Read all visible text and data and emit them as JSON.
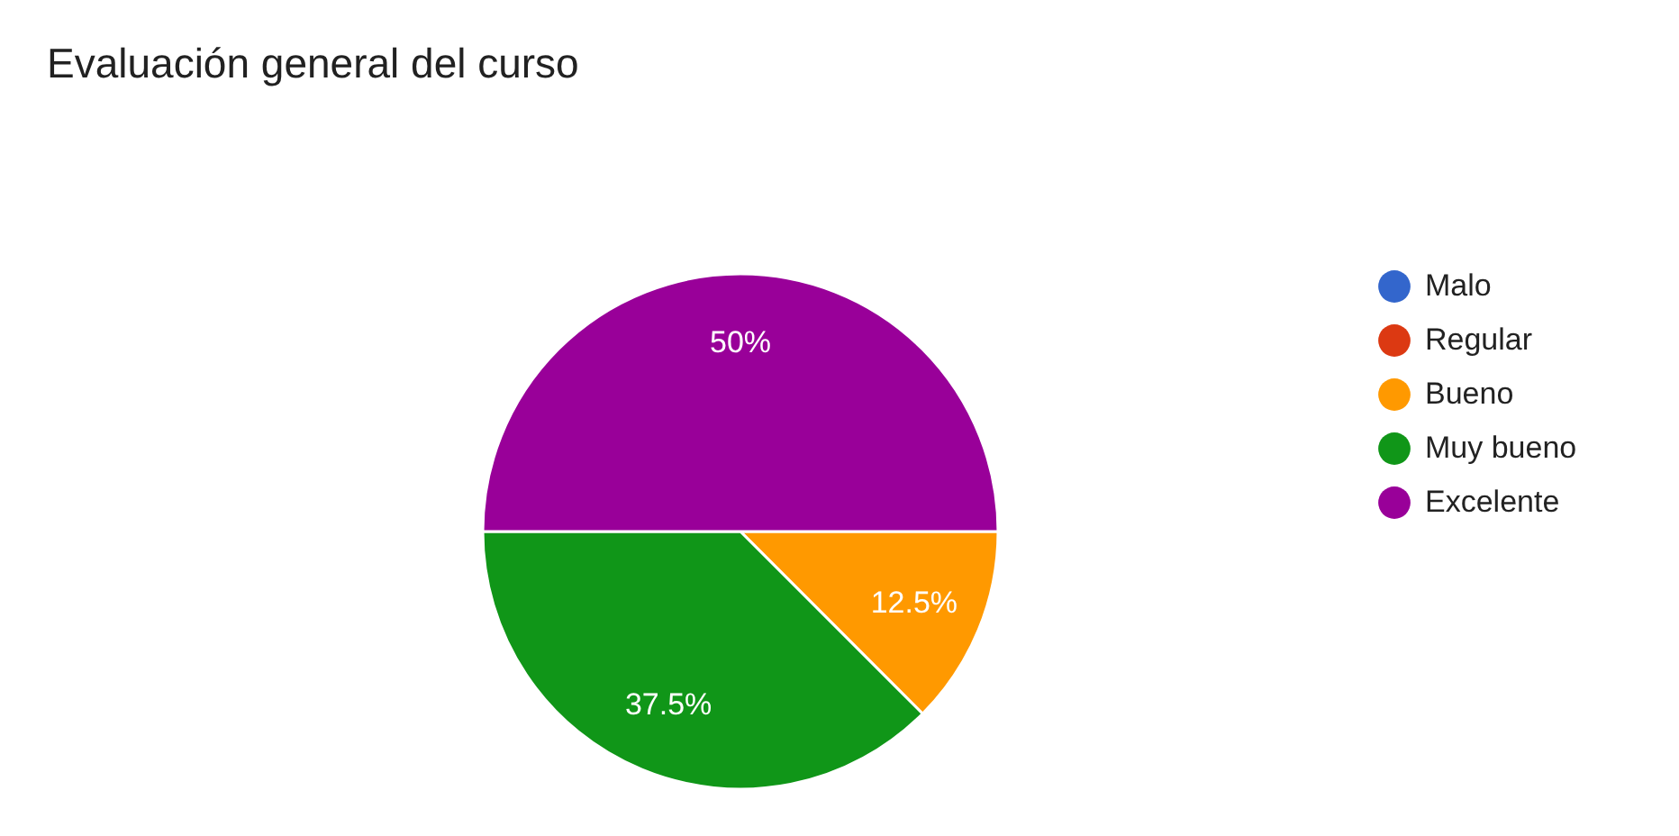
{
  "chart_data": {
    "type": "pie",
    "title": "Evaluación general del curso",
    "categories": [
      "Malo",
      "Regular",
      "Bueno",
      "Muy bueno",
      "Excelente"
    ],
    "values": [
      0,
      0,
      12.5,
      37.5,
      50
    ],
    "colors": [
      "#3366cc",
      "#dc3912",
      "#ff9900",
      "#109618",
      "#990099"
    ],
    "value_labels": [
      null,
      null,
      "12.5%",
      "37.5%",
      "50%"
    ],
    "legend": "right"
  }
}
